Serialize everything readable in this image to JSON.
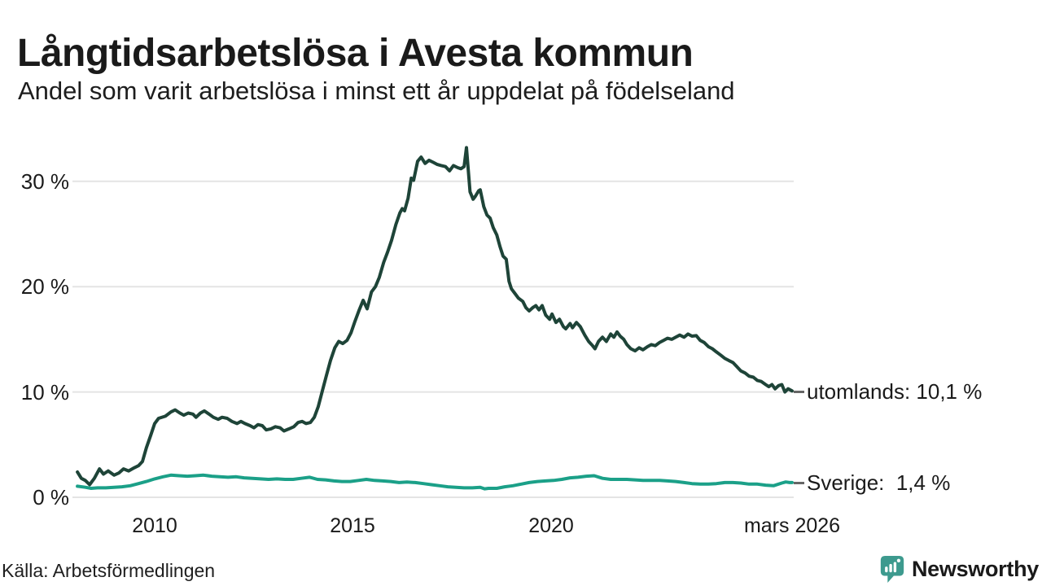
{
  "title": "Långtidsarbetslösa i Avesta kommun",
  "subtitle": "Andel som varit arbetslösa i minst ett år uppdelat på födelseland",
  "source": "Källa: Arbetsförmedlingen",
  "brand": {
    "name": "Newsworthy",
    "color": "#3b9b8e",
    "icon": "bar-chart-bubble-icon"
  },
  "colors": {
    "utomlands_line": "#1e4438",
    "sverige_line": "#1ba088",
    "grid": "#e4e4e4",
    "leader_dash": "#666666",
    "text": "#1a1a1a"
  },
  "chart_data": {
    "type": "line",
    "title": "Långtidsarbetslösa i Avesta kommun",
    "subtitle": "Andel som varit arbetslösa i minst ett år uppdelat på födelseland",
    "unit": "%",
    "grid": "horizontal",
    "legend_position": "right-end-labels",
    "x_axis": {
      "range": [
        2007.9,
        2026.35
      ],
      "ticks": [
        {
          "value": 2010,
          "label": "2010"
        },
        {
          "value": 2015,
          "label": "2015"
        },
        {
          "value": 2020,
          "label": "2020"
        },
        {
          "value": 2026.17,
          "label": "mars 2026"
        }
      ]
    },
    "y_axis": {
      "range": [
        0,
        34.5
      ],
      "ticks": [
        {
          "value": 0,
          "label": "0 %"
        },
        {
          "value": 10,
          "label": "10 %"
        },
        {
          "value": 20,
          "label": "20 %"
        },
        {
          "value": 30,
          "label": "30 %"
        }
      ]
    },
    "series": [
      {
        "name": "utomlands",
        "end_label": "utomlands: 10,1 %",
        "last_value": "10,1 %",
        "color": "#1e4438",
        "stroke_width": 4,
        "points": [
          [
            2008.04,
            2.4
          ],
          [
            2008.14,
            1.8
          ],
          [
            2008.24,
            1.6
          ],
          [
            2008.35,
            1.2
          ],
          [
            2008.47,
            1.8
          ],
          [
            2008.6,
            2.7
          ],
          [
            2008.7,
            2.2
          ],
          [
            2008.82,
            2.5
          ],
          [
            2008.97,
            2.1
          ],
          [
            2009.09,
            2.3
          ],
          [
            2009.21,
            2.7
          ],
          [
            2009.34,
            2.5
          ],
          [
            2009.48,
            2.8
          ],
          [
            2009.59,
            3.0
          ],
          [
            2009.69,
            3.4
          ],
          [
            2009.79,
            4.7
          ],
          [
            2009.9,
            5.9
          ],
          [
            2010.0,
            7.0
          ],
          [
            2010.1,
            7.5
          ],
          [
            2010.27,
            7.7
          ],
          [
            2010.41,
            8.1
          ],
          [
            2010.52,
            8.3
          ],
          [
            2010.64,
            8.0
          ],
          [
            2010.74,
            7.8
          ],
          [
            2010.85,
            8.0
          ],
          [
            2010.97,
            7.9
          ],
          [
            2011.05,
            7.6
          ],
          [
            2011.16,
            8.0
          ],
          [
            2011.26,
            8.2
          ],
          [
            2011.38,
            7.9
          ],
          [
            2011.49,
            7.6
          ],
          [
            2011.61,
            7.4
          ],
          [
            2011.71,
            7.6
          ],
          [
            2011.84,
            7.5
          ],
          [
            2011.96,
            7.2
          ],
          [
            2012.09,
            7.0
          ],
          [
            2012.19,
            7.2
          ],
          [
            2012.29,
            7.0
          ],
          [
            2012.42,
            6.8
          ],
          [
            2012.52,
            6.6
          ],
          [
            2012.62,
            6.9
          ],
          [
            2012.73,
            6.8
          ],
          [
            2012.83,
            6.4
          ],
          [
            2012.95,
            6.5
          ],
          [
            2013.06,
            6.7
          ],
          [
            2013.18,
            6.6
          ],
          [
            2013.28,
            6.3
          ],
          [
            2013.41,
            6.5
          ],
          [
            2013.53,
            6.7
          ],
          [
            2013.64,
            7.1
          ],
          [
            2013.74,
            7.2
          ],
          [
            2013.84,
            7.0
          ],
          [
            2013.95,
            7.1
          ],
          [
            2014.05,
            7.6
          ],
          [
            2014.15,
            8.6
          ],
          [
            2014.26,
            10.2
          ],
          [
            2014.36,
            11.6
          ],
          [
            2014.46,
            13.0
          ],
          [
            2014.57,
            14.2
          ],
          [
            2014.67,
            14.8
          ],
          [
            2014.77,
            14.6
          ],
          [
            2014.88,
            14.9
          ],
          [
            2014.98,
            15.6
          ],
          [
            2015.08,
            16.7
          ],
          [
            2015.19,
            17.8
          ],
          [
            2015.29,
            18.7
          ],
          [
            2015.39,
            17.9
          ],
          [
            2015.5,
            19.5
          ],
          [
            2015.6,
            20.0
          ],
          [
            2015.7,
            20.9
          ],
          [
            2015.81,
            22.3
          ],
          [
            2015.91,
            23.3
          ],
          [
            2016.01,
            24.4
          ],
          [
            2016.12,
            25.9
          ],
          [
            2016.22,
            27.0
          ],
          [
            2016.28,
            27.4
          ],
          [
            2016.34,
            27.2
          ],
          [
            2016.43,
            28.4
          ],
          [
            2016.51,
            30.3
          ],
          [
            2016.57,
            30.1
          ],
          [
            2016.67,
            31.9
          ],
          [
            2016.76,
            32.3
          ],
          [
            2016.86,
            31.7
          ],
          [
            2016.96,
            32.0
          ],
          [
            2017.07,
            31.8
          ],
          [
            2017.17,
            31.6
          ],
          [
            2017.27,
            31.5
          ],
          [
            2017.38,
            31.4
          ],
          [
            2017.48,
            31.0
          ],
          [
            2017.58,
            31.5
          ],
          [
            2017.69,
            31.3
          ],
          [
            2017.77,
            31.2
          ],
          [
            2017.85,
            31.4
          ],
          [
            2017.91,
            33.2
          ],
          [
            2018.0,
            29.0
          ],
          [
            2018.08,
            28.3
          ],
          [
            2018.14,
            28.6
          ],
          [
            2018.22,
            29.1
          ],
          [
            2018.26,
            29.2
          ],
          [
            2018.35,
            27.6
          ],
          [
            2018.43,
            26.8
          ],
          [
            2018.51,
            26.5
          ],
          [
            2018.59,
            25.6
          ],
          [
            2018.68,
            24.9
          ],
          [
            2018.76,
            23.8
          ],
          [
            2018.84,
            22.9
          ],
          [
            2018.92,
            22.6
          ],
          [
            2018.99,
            20.5
          ],
          [
            2019.05,
            19.8
          ],
          [
            2019.13,
            19.4
          ],
          [
            2019.23,
            18.9
          ],
          [
            2019.34,
            18.6
          ],
          [
            2019.42,
            18.0
          ],
          [
            2019.5,
            17.7
          ],
          [
            2019.59,
            18.0
          ],
          [
            2019.67,
            18.2
          ],
          [
            2019.75,
            17.8
          ],
          [
            2019.83,
            18.2
          ],
          [
            2019.92,
            17.3
          ],
          [
            2020.02,
            16.9
          ],
          [
            2020.08,
            17.4
          ],
          [
            2020.18,
            16.6
          ],
          [
            2020.27,
            16.9
          ],
          [
            2020.37,
            16.2
          ],
          [
            2020.43,
            16.0
          ],
          [
            2020.54,
            16.5
          ],
          [
            2020.6,
            16.1
          ],
          [
            2020.7,
            16.6
          ],
          [
            2020.8,
            16.2
          ],
          [
            2020.91,
            15.4
          ],
          [
            2021.01,
            14.8
          ],
          [
            2021.11,
            14.4
          ],
          [
            2021.17,
            14.1
          ],
          [
            2021.26,
            14.8
          ],
          [
            2021.36,
            15.2
          ],
          [
            2021.46,
            14.8
          ],
          [
            2021.57,
            15.5
          ],
          [
            2021.65,
            15.2
          ],
          [
            2021.73,
            15.7
          ],
          [
            2021.81,
            15.3
          ],
          [
            2021.9,
            15.0
          ],
          [
            2021.98,
            14.5
          ],
          [
            2022.08,
            14.1
          ],
          [
            2022.19,
            13.9
          ],
          [
            2022.29,
            14.2
          ],
          [
            2022.39,
            14.0
          ],
          [
            2022.5,
            14.3
          ],
          [
            2022.6,
            14.5
          ],
          [
            2022.7,
            14.4
          ],
          [
            2022.81,
            14.7
          ],
          [
            2022.91,
            14.9
          ],
          [
            2023.01,
            15.1
          ],
          [
            2023.12,
            15.0
          ],
          [
            2023.22,
            15.2
          ],
          [
            2023.32,
            15.4
          ],
          [
            2023.43,
            15.2
          ],
          [
            2023.53,
            15.5
          ],
          [
            2023.63,
            15.3
          ],
          [
            2023.74,
            15.35
          ],
          [
            2023.84,
            14.9
          ],
          [
            2023.94,
            14.7
          ],
          [
            2024.05,
            14.3
          ],
          [
            2024.15,
            14.1
          ],
          [
            2024.25,
            13.8
          ],
          [
            2024.36,
            13.5
          ],
          [
            2024.46,
            13.2
          ],
          [
            2024.56,
            13.0
          ],
          [
            2024.67,
            12.8
          ],
          [
            2024.77,
            12.4
          ],
          [
            2024.87,
            12.0
          ],
          [
            2024.98,
            11.8
          ],
          [
            2025.08,
            11.5
          ],
          [
            2025.19,
            11.4
          ],
          [
            2025.29,
            11.1
          ],
          [
            2025.39,
            11.0
          ],
          [
            2025.5,
            10.7
          ],
          [
            2025.58,
            10.5
          ],
          [
            2025.66,
            10.7
          ],
          [
            2025.74,
            10.3
          ],
          [
            2025.83,
            10.6
          ],
          [
            2025.91,
            10.7
          ],
          [
            2025.99,
            10.0
          ],
          [
            2026.07,
            10.3
          ],
          [
            2026.17,
            10.1
          ]
        ]
      },
      {
        "name": "Sverige",
        "end_label": "Sverige:  1,4 %",
        "last_value": "1,4 %",
        "color": "#1ba088",
        "stroke_width": 4,
        "points": [
          [
            2008.04,
            1.05
          ],
          [
            2008.24,
            0.95
          ],
          [
            2008.39,
            0.85
          ],
          [
            2008.55,
            0.9
          ],
          [
            2008.76,
            0.9
          ],
          [
            2008.97,
            0.95
          ],
          [
            2009.17,
            1.0
          ],
          [
            2009.38,
            1.1
          ],
          [
            2009.59,
            1.3
          ],
          [
            2009.79,
            1.5
          ],
          [
            2010.0,
            1.75
          ],
          [
            2010.21,
            1.95
          ],
          [
            2010.41,
            2.1
          ],
          [
            2010.62,
            2.05
          ],
          [
            2010.83,
            2.0
          ],
          [
            2011.03,
            2.05
          ],
          [
            2011.24,
            2.1
          ],
          [
            2011.45,
            2.0
          ],
          [
            2011.65,
            1.95
          ],
          [
            2011.86,
            1.9
          ],
          [
            2012.07,
            1.95
          ],
          [
            2012.27,
            1.85
          ],
          [
            2012.48,
            1.8
          ],
          [
            2012.69,
            1.75
          ],
          [
            2012.89,
            1.7
          ],
          [
            2013.1,
            1.75
          ],
          [
            2013.31,
            1.7
          ],
          [
            2013.51,
            1.7
          ],
          [
            2013.72,
            1.8
          ],
          [
            2013.93,
            1.9
          ],
          [
            2014.13,
            1.7
          ],
          [
            2014.34,
            1.65
          ],
          [
            2014.55,
            1.55
          ],
          [
            2014.75,
            1.5
          ],
          [
            2014.96,
            1.5
          ],
          [
            2015.17,
            1.6
          ],
          [
            2015.37,
            1.7
          ],
          [
            2015.58,
            1.6
          ],
          [
            2015.78,
            1.55
          ],
          [
            2015.99,
            1.5
          ],
          [
            2016.2,
            1.4
          ],
          [
            2016.4,
            1.45
          ],
          [
            2016.61,
            1.4
          ],
          [
            2016.82,
            1.3
          ],
          [
            2017.02,
            1.2
          ],
          [
            2017.23,
            1.1
          ],
          [
            2017.44,
            1.0
          ],
          [
            2017.64,
            0.95
          ],
          [
            2017.85,
            0.9
          ],
          [
            2018.06,
            0.9
          ],
          [
            2018.26,
            0.95
          ],
          [
            2018.37,
            0.8
          ],
          [
            2018.47,
            0.85
          ],
          [
            2018.68,
            0.85
          ],
          [
            2018.88,
            1.0
          ],
          [
            2019.09,
            1.1
          ],
          [
            2019.3,
            1.25
          ],
          [
            2019.5,
            1.4
          ],
          [
            2019.71,
            1.5
          ],
          [
            2019.92,
            1.55
          ],
          [
            2020.12,
            1.6
          ],
          [
            2020.33,
            1.7
          ],
          [
            2020.54,
            1.85
          ],
          [
            2020.74,
            1.9
          ],
          [
            2020.95,
            2.0
          ],
          [
            2021.15,
            2.05
          ],
          [
            2021.36,
            1.8
          ],
          [
            2021.57,
            1.7
          ],
          [
            2021.77,
            1.7
          ],
          [
            2021.98,
            1.7
          ],
          [
            2022.19,
            1.65
          ],
          [
            2022.39,
            1.6
          ],
          [
            2022.6,
            1.6
          ],
          [
            2022.81,
            1.6
          ],
          [
            2023.01,
            1.55
          ],
          [
            2023.22,
            1.5
          ],
          [
            2023.43,
            1.4
          ],
          [
            2023.63,
            1.3
          ],
          [
            2023.84,
            1.25
          ],
          [
            2024.05,
            1.25
          ],
          [
            2024.25,
            1.3
          ],
          [
            2024.46,
            1.4
          ],
          [
            2024.67,
            1.4
          ],
          [
            2024.87,
            1.35
          ],
          [
            2025.08,
            1.25
          ],
          [
            2025.29,
            1.25
          ],
          [
            2025.5,
            1.15
          ],
          [
            2025.7,
            1.1
          ],
          [
            2025.91,
            1.35
          ],
          [
            2026.01,
            1.45
          ],
          [
            2026.11,
            1.4
          ],
          [
            2026.17,
            1.4
          ]
        ]
      }
    ]
  }
}
